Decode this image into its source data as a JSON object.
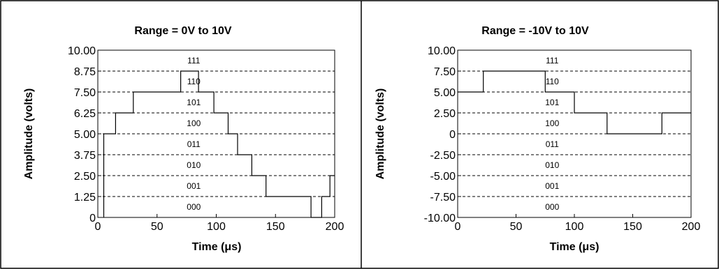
{
  "chart_data": [
    {
      "type": "line",
      "title": "Range = 0V to 10V",
      "xlabel": "Time (μs)",
      "ylabel": "Amplitude (volts)",
      "xlim": [
        0,
        200
      ],
      "ylim": [
        0,
        10
      ],
      "grid": true,
      "x_ticks": [
        "0",
        "50",
        "100",
        "150",
        "200"
      ],
      "y_ticks": [
        "0",
        "1.25",
        "2.50",
        "3.75",
        "5.00",
        "6.25",
        "7.50",
        "8.75",
        "10.00"
      ],
      "codes": [
        "000",
        "001",
        "010",
        "011",
        "100",
        "101",
        "110",
        "111"
      ],
      "series": [
        {
          "x": [
            5,
            5,
            15,
            15,
            30,
            30,
            70,
            70,
            85,
            85,
            98,
            98,
            110,
            110,
            118,
            118,
            130,
            130,
            142,
            142,
            180,
            180,
            189,
            189,
            196,
            196,
            200
          ],
          "y": [
            0,
            5.0,
            5.0,
            6.25,
            6.25,
            7.5,
            7.5,
            8.75,
            8.75,
            7.5,
            7.5,
            6.25,
            6.25,
            5.0,
            5.0,
            3.75,
            3.75,
            2.5,
            2.5,
            1.25,
            1.25,
            0,
            0,
            1.25,
            1.25,
            2.5,
            2.5
          ]
        }
      ]
    },
    {
      "type": "line",
      "title": "Range = -10V to 10V",
      "xlabel": "Time (μs)",
      "ylabel": "Amplitude (volts)",
      "xlim": [
        0,
        200
      ],
      "ylim": [
        -10,
        10
      ],
      "grid": true,
      "x_ticks": [
        "0",
        "50",
        "100",
        "150",
        "200"
      ],
      "y_ticks": [
        "-10.00",
        "-7.50",
        "-5.00",
        "-2.50",
        "0",
        "2.50",
        "5.00",
        "7.50",
        "10.00"
      ],
      "codes": [
        "000",
        "001",
        "010",
        "011",
        "100",
        "101",
        "110",
        "111"
      ],
      "series": [
        {
          "x": [
            0,
            22,
            22,
            75,
            75,
            100,
            100,
            128,
            128,
            175,
            175,
            200
          ],
          "y": [
            5.0,
            5.0,
            7.5,
            7.5,
            5.0,
            5.0,
            2.5,
            2.5,
            0,
            0,
            2.5,
            2.5
          ]
        }
      ]
    }
  ]
}
